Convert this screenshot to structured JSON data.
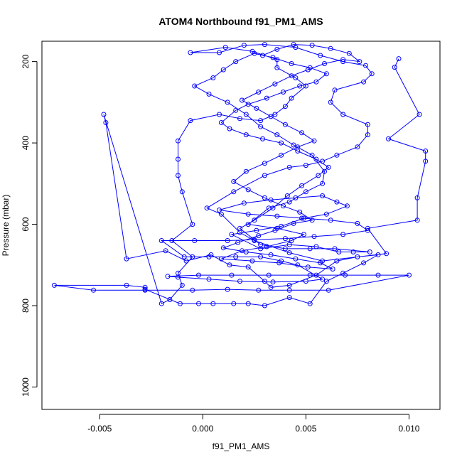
{
  "chart_data": {
    "type": "scatter",
    "title": "ATOM4 Northbound f91_PM1_AMS",
    "xlabel": "f91_PM1_AMS",
    "ylabel": "Pressure (mbar)",
    "xlim": [
      -0.0078,
      0.0115
    ],
    "ylim": [
      1055,
      150
    ],
    "y_reversed": true,
    "x_ticks": [
      {
        "value": -0.005,
        "label": "-0.005"
      },
      {
        "value": 0.0,
        "label": "0.000"
      },
      {
        "value": 0.005,
        "label": "0.005"
      },
      {
        "value": 0.01,
        "label": "0.010"
      }
    ],
    "y_ticks": [
      {
        "value": 200,
        "label": "200"
      },
      {
        "value": 400,
        "label": "400"
      },
      {
        "value": 600,
        "label": "600"
      },
      {
        "value": 800,
        "label": "800"
      },
      {
        "value": 1000,
        "label": "1000"
      }
    ],
    "series_color": "#0000ff",
    "marker": "open-circle",
    "connected": true,
    "points": [
      [
        0.0095,
        193
      ],
      [
        0.0093,
        214
      ],
      [
        0.0105,
        330
      ],
      [
        0.009,
        390
      ],
      [
        0.0108,
        420
      ],
      [
        0.0108,
        445
      ],
      [
        0.0104,
        535
      ],
      [
        0.0104,
        590
      ],
      [
        0.008,
        610
      ],
      [
        0.0089,
        672
      ],
      [
        0.0058,
        690
      ],
      [
        0.0042,
        670
      ],
      [
        0.0025,
        640
      ],
      [
        0.0018,
        620
      ],
      [
        0.0009,
        575
      ],
      [
        0.0002,
        560
      ],
      [
        0.0015,
        520
      ],
      [
        0.003,
        480
      ],
      [
        0.0042,
        460
      ],
      [
        0.005,
        455
      ],
      [
        0.0058,
        445
      ],
      [
        0.0065,
        430
      ],
      [
        0.0075,
        410
      ],
      [
        0.008,
        380
      ],
      [
        0.008,
        355
      ],
      [
        0.0068,
        330
      ],
      [
        0.0062,
        300
      ],
      [
        0.0064,
        270
      ],
      [
        0.0078,
        250
      ],
      [
        0.0082,
        230
      ],
      [
        0.0079,
        210
      ],
      [
        0.0068,
        200
      ],
      [
        0.0057,
        185
      ],
      [
        0.0045,
        165
      ],
      [
        0.003,
        158
      ],
      [
        0.002,
        160
      ],
      [
        0.0008,
        178
      ],
      [
        -0.0006,
        178
      ],
      [
        0.0011,
        165
      ],
      [
        0.0024,
        175
      ],
      [
        0.0036,
        195
      ],
      [
        0.0036,
        215
      ],
      [
        0.0045,
        240
      ],
      [
        0.005,
        260
      ],
      [
        0.0043,
        290
      ],
      [
        0.004,
        310
      ],
      [
        0.0035,
        330
      ],
      [
        0.0028,
        345
      ],
      [
        0.0018,
        340
      ],
      [
        0.0008,
        330
      ],
      [
        -0.0006,
        345
      ],
      [
        -0.0012,
        395
      ],
      [
        -0.0012,
        440
      ],
      [
        -0.0012,
        480
      ],
      [
        -0.001,
        520
      ],
      [
        -0.0005,
        600
      ],
      [
        -0.0015,
        640
      ],
      [
        -0.0005,
        680
      ],
      [
        -0.0012,
        720
      ],
      [
        -0.001,
        750
      ],
      [
        -0.0016,
        785
      ],
      [
        -0.002,
        795
      ],
      [
        -0.0048,
        330
      ],
      [
        -0.0047,
        350
      ],
      [
        -0.0037,
        685
      ],
      [
        -0.0018,
        665
      ],
      [
        -0.0008,
        690
      ],
      [
        0.0004,
        675
      ],
      [
        0.0013,
        700
      ],
      [
        0.0022,
        705
      ],
      [
        0.003,
        740
      ],
      [
        0.0033,
        755
      ],
      [
        0.0042,
        750
      ],
      [
        0.0055,
        725
      ],
      [
        0.0065,
        690
      ],
      [
        0.0075,
        680
      ],
      [
        0.0085,
        675
      ],
      [
        0.0078,
        695
      ],
      [
        0.0068,
        720
      ],
      [
        0.006,
        740
      ],
      [
        0.0052,
        795
      ],
      [
        0.0042,
        780
      ],
      [
        0.003,
        800
      ],
      [
        0.0022,
        795
      ],
      [
        0.0015,
        795
      ],
      [
        0.0005,
        795
      ],
      [
        -0.0002,
        795
      ],
      [
        -0.0011,
        795
      ],
      [
        -0.0028,
        760
      ],
      [
        -0.0028,
        755
      ],
      [
        -0.0037,
        750
      ],
      [
        -0.0072,
        750
      ],
      [
        -0.0053,
        762
      ],
      [
        -0.0028,
        762
      ],
      [
        -0.0005,
        762
      ],
      [
        0.0012,
        760
      ],
      [
        0.0027,
        762
      ],
      [
        0.0042,
        762
      ],
      [
        0.0061,
        762
      ],
      [
        0.01,
        725
      ],
      [
        0.0085,
        725
      ],
      [
        0.0069,
        725
      ],
      [
        0.0052,
        725
      ],
      [
        0.0032,
        725
      ],
      [
        0.0014,
        725
      ],
      [
        -0.0002,
        725
      ],
      [
        -0.0017,
        728
      ],
      [
        -0.0012,
        730
      ],
      [
        0.0003,
        735
      ],
      [
        0.0018,
        740
      ],
      [
        0.0034,
        742
      ],
      [
        0.005,
        740
      ],
      [
        0.0058,
        735
      ],
      [
        0.0046,
        700
      ],
      [
        0.0038,
        690
      ],
      [
        0.0028,
        680
      ],
      [
        0.0016,
        680
      ],
      [
        0.0003,
        680
      ],
      [
        -0.0009,
        680
      ],
      [
        -0.002,
        640
      ],
      [
        -0.0004,
        640
      ],
      [
        0.0012,
        640
      ],
      [
        0.0025,
        638
      ],
      [
        0.004,
        635
      ],
      [
        0.0054,
        630
      ],
      [
        0.0068,
        625
      ],
      [
        0.008,
        615
      ],
      [
        0.0075,
        598
      ],
      [
        0.0062,
        590
      ],
      [
        0.0048,
        585
      ],
      [
        0.0036,
        580
      ],
      [
        0.0022,
        575
      ],
      [
        0.0008,
        565
      ],
      [
        0.002,
        548
      ],
      [
        0.0033,
        540
      ],
      [
        0.0045,
        535
      ],
      [
        0.0058,
        530
      ],
      [
        0.0065,
        545
      ],
      [
        0.007,
        555
      ],
      [
        0.006,
        575
      ],
      [
        0.0049,
        585
      ],
      [
        0.0038,
        605
      ],
      [
        0.0026,
        615
      ],
      [
        0.0014,
        625
      ],
      [
        0.0028,
        660
      ],
      [
        0.0042,
        650
      ],
      [
        0.0055,
        655
      ],
      [
        0.0066,
        668
      ],
      [
        0.0073,
        668
      ],
      [
        0.0081,
        668
      ],
      [
        0.0064,
        660
      ],
      [
        0.0052,
        660
      ],
      [
        0.004,
        660
      ],
      [
        0.0028,
        650
      ],
      [
        0.0018,
        610
      ],
      [
        0.0025,
        590
      ],
      [
        0.0034,
        560
      ],
      [
        0.0041,
        530
      ],
      [
        0.0048,
        505
      ],
      [
        0.0056,
        480
      ],
      [
        0.0061,
        460
      ],
      [
        0.0055,
        440
      ],
      [
        0.0046,
        420
      ],
      [
        0.0038,
        400
      ],
      [
        0.0029,
        390
      ],
      [
        0.0021,
        380
      ],
      [
        0.0013,
        365
      ],
      [
        0.0009,
        350
      ],
      [
        0.0016,
        320
      ],
      [
        0.0022,
        305
      ],
      [
        0.0031,
        290
      ],
      [
        0.0039,
        275
      ],
      [
        0.0047,
        260
      ],
      [
        0.0055,
        250
      ],
      [
        0.006,
        230
      ],
      [
        0.0052,
        215
      ],
      [
        0.0043,
        205
      ],
      [
        0.0034,
        190
      ],
      [
        0.0025,
        180
      ],
      [
        0.0016,
        200
      ],
      [
        0.001,
        220
      ],
      [
        0.0005,
        240
      ],
      [
        -0.0004,
        260
      ],
      [
        0.0003,
        280
      ],
      [
        0.0012,
        300
      ],
      [
        0.0021,
        330
      ],
      [
        0.0028,
        360
      ],
      [
        0.0036,
        380
      ],
      [
        0.0044,
        405
      ],
      [
        0.0053,
        430
      ],
      [
        0.0059,
        470
      ],
      [
        0.0058,
        500
      ],
      [
        0.005,
        520
      ],
      [
        0.0042,
        545
      ],
      [
        0.0032,
        560
      ],
      [
        0.0022,
        600
      ],
      [
        0.0036,
        610
      ],
      [
        0.0049,
        625
      ],
      [
        0.0043,
        640
      ],
      [
        0.0031,
        655
      ],
      [
        0.0019,
        665
      ],
      [
        0.0009,
        685
      ],
      [
        0.0024,
        690
      ],
      [
        0.0037,
        695
      ],
      [
        0.0051,
        705
      ],
      [
        0.0063,
        710
      ],
      [
        0.0057,
        695
      ],
      [
        0.0045,
        685
      ],
      [
        0.0033,
        675
      ],
      [
        0.0021,
        668
      ],
      [
        0.001,
        658
      ],
      [
        0.0017,
        645
      ],
      [
        0.0027,
        628
      ],
      [
        0.0035,
        615
      ],
      [
        0.0044,
        598
      ],
      [
        0.0053,
        590
      ],
      [
        0.0047,
        570
      ],
      [
        0.0039,
        555
      ],
      [
        0.003,
        535
      ],
      [
        0.0022,
        515
      ],
      [
        0.0015,
        495
      ],
      [
        0.0021,
        470
      ],
      [
        0.003,
        450
      ],
      [
        0.0038,
        430
      ],
      [
        0.0046,
        410
      ],
      [
        0.0054,
        395
      ],
      [
        0.0048,
        375
      ],
      [
        0.004,
        355
      ],
      [
        0.0033,
        335
      ],
      [
        0.0026,
        315
      ],
      [
        0.0019,
        295
      ],
      [
        0.0027,
        275
      ],
      [
        0.0035,
        255
      ],
      [
        0.0043,
        235
      ],
      [
        0.0051,
        220
      ],
      [
        0.0059,
        205
      ],
      [
        0.0068,
        195
      ],
      [
        0.0076,
        200
      ],
      [
        0.0071,
        180
      ],
      [
        0.0062,
        168
      ],
      [
        0.0053,
        160
      ],
      [
        0.0044,
        158
      ],
      [
        0.0036,
        170
      ],
      [
        0.0029,
        185
      ]
    ]
  }
}
